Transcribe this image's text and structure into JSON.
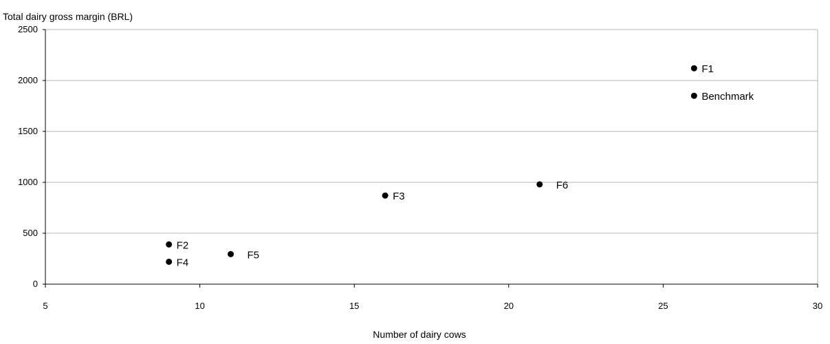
{
  "chart_data": {
    "type": "scatter",
    "title": "",
    "xlabel": "Number of dairy cows",
    "ylabel": "Total dairy gross margin (BRL)",
    "xlim": [
      5,
      30
    ],
    "ylim": [
      0,
      2500
    ],
    "xticks": [
      5,
      10,
      15,
      20,
      25,
      30
    ],
    "yticks": [
      0,
      500,
      1000,
      1500,
      2000,
      2500
    ],
    "grid": "horizontal",
    "legend": "none",
    "marker_color": "#000000",
    "grid_color": "#b3b3b3",
    "points": [
      {
        "label": "F1",
        "x": 26,
        "y": 2120
      },
      {
        "label": "Benchmark",
        "x": 26,
        "y": 1850
      },
      {
        "label": "F2",
        "x": 9,
        "y": 390
      },
      {
        "label": "F3",
        "x": 16,
        "y": 870
      },
      {
        "label": "F4",
        "x": 9,
        "y": 220
      },
      {
        "label": "F5",
        "x": 11,
        "y": 295
      },
      {
        "label": "F6",
        "x": 21,
        "y": 980
      }
    ]
  }
}
